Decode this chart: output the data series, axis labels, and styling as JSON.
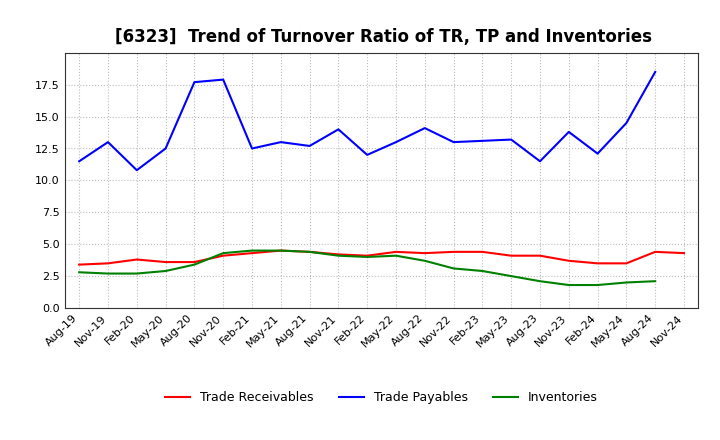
{
  "title": "[6323]  Trend of Turnover Ratio of TR, TP and Inventories",
  "x_labels": [
    "Aug-19",
    "Nov-19",
    "Feb-20",
    "May-20",
    "Aug-20",
    "Nov-20",
    "Feb-21",
    "May-21",
    "Aug-21",
    "Nov-21",
    "Feb-22",
    "May-22",
    "Aug-22",
    "Nov-22",
    "Feb-23",
    "May-23",
    "Aug-23",
    "Nov-23",
    "Feb-24",
    "May-24",
    "Aug-24",
    "Nov-24"
  ],
  "trade_receivables": [
    3.4,
    3.5,
    3.8,
    3.6,
    3.6,
    4.1,
    4.3,
    4.5,
    4.4,
    4.2,
    4.1,
    4.4,
    4.3,
    4.4,
    4.4,
    4.1,
    4.1,
    3.7,
    3.5,
    3.5,
    4.4,
    4.3
  ],
  "trade_payables": [
    11.5,
    13.0,
    10.8,
    12.5,
    17.7,
    17.9,
    12.5,
    13.0,
    12.7,
    14.0,
    12.0,
    13.0,
    14.1,
    13.0,
    13.1,
    13.2,
    11.5,
    13.8,
    12.1,
    14.5,
    18.5,
    null
  ],
  "inventories": [
    2.8,
    2.7,
    2.7,
    2.9,
    3.4,
    4.3,
    4.5,
    4.5,
    4.4,
    4.1,
    4.0,
    4.1,
    3.7,
    3.1,
    2.9,
    2.5,
    2.1,
    1.8,
    1.8,
    2.0,
    2.1,
    null
  ],
  "ylim": [
    0,
    20
  ],
  "yticks": [
    0.0,
    2.5,
    5.0,
    7.5,
    10.0,
    12.5,
    15.0,
    17.5
  ],
  "line_colors": {
    "trade_receivables": "#ff0000",
    "trade_payables": "#0000ff",
    "inventories": "#008000"
  },
  "legend_labels": [
    "Trade Receivables",
    "Trade Payables",
    "Inventories"
  ],
  "background_color": "#ffffff",
  "grid_color": "#aaaaaa",
  "title_fontsize": 12,
  "tick_fontsize": 8,
  "linewidth": 1.5
}
